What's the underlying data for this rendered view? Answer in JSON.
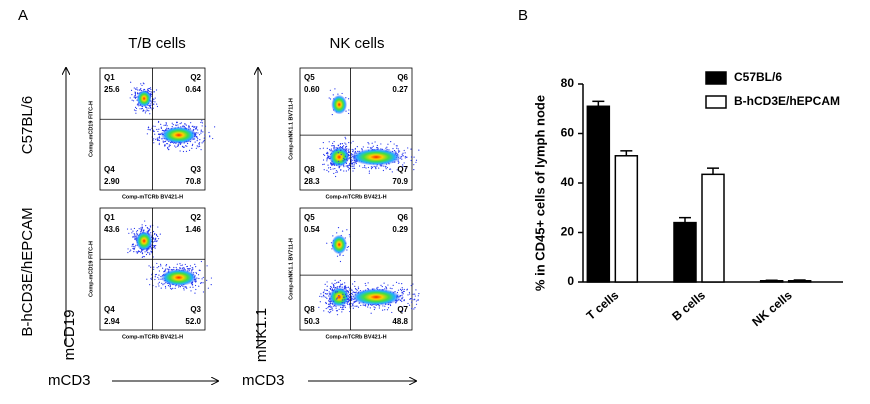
{
  "panel_a": {
    "label": "A",
    "column_titles": [
      "T/B cells",
      "NK cells"
    ],
    "row_labels": [
      "C57BL/6",
      "B-hCD3E/hEPCAM"
    ],
    "x_axis_labels": [
      "mCD3",
      "mCD3"
    ],
    "y_axis_labels": [
      "mCD19",
      "mNK1.1"
    ],
    "plots": [
      {
        "x_label": "Comp-mTCRb BV421-H",
        "y_label": "Comp-mCD19 FITC-H",
        "quadrants": [
          {
            "name": "Q1",
            "value": "25.6"
          },
          {
            "name": "Q2",
            "value": "0.64"
          },
          {
            "name": "Q4",
            "value": "2.90"
          },
          {
            "name": "Q3",
            "value": "70.8"
          }
        ]
      },
      {
        "x_label": "Comp-mTCRb BV421-H",
        "y_label": "Comp-mNK1.1 BV711-H",
        "quadrants": [
          {
            "name": "Q5",
            "value": "0.60"
          },
          {
            "name": "Q6",
            "value": "0.27"
          },
          {
            "name": "Q8",
            "value": "28.3"
          },
          {
            "name": "Q7",
            "value": "70.9"
          }
        ]
      },
      {
        "x_label": "Comp-mTCRb BV421-H",
        "y_label": "Comp-mCD19 FITC-H",
        "quadrants": [
          {
            "name": "Q1",
            "value": "43.6"
          },
          {
            "name": "Q2",
            "value": "1.46"
          },
          {
            "name": "Q4",
            "value": "2.94"
          },
          {
            "name": "Q3",
            "value": "52.0"
          }
        ]
      },
      {
        "x_label": "Comp-mTCRb BV421-H",
        "y_label": "Comp-mNK1.1 BV711-H",
        "quadrants": [
          {
            "name": "Q5",
            "value": "0.54"
          },
          {
            "name": "Q6",
            "value": "0.29"
          },
          {
            "name": "Q8",
            "value": "50.3"
          },
          {
            "name": "Q7",
            "value": "48.8"
          }
        ]
      }
    ]
  },
  "chart_data": {
    "type": "bar",
    "panel_label": "B",
    "y_label": "% in CD45+ cells of lymph node",
    "categories": [
      "T cells",
      "B cells",
      "NK cells"
    ],
    "series": [
      {
        "name": "C57BL/6",
        "color": "#000000",
        "values": [
          71,
          24,
          0.5
        ],
        "errors": [
          2,
          2,
          0.2
        ]
      },
      {
        "name": "B-hCD3E/hEPCAM",
        "color": "#ffffff",
        "values": [
          51,
          43.5,
          0.5
        ],
        "errors": [
          2,
          2.5,
          0.3
        ]
      }
    ],
    "ylim": [
      0,
      80
    ],
    "yticks": [
      0,
      20,
      40,
      60,
      80
    ],
    "legend": "top-right"
  }
}
